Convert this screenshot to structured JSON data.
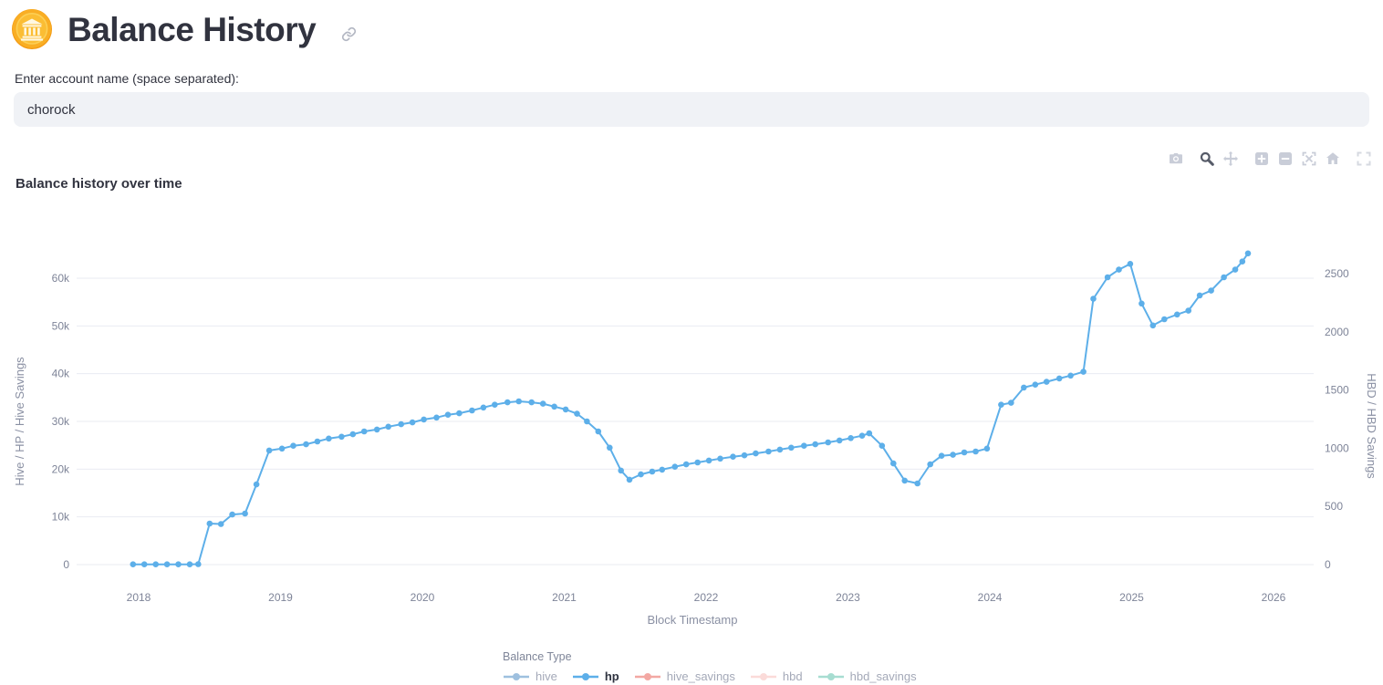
{
  "header": {
    "title": "Balance History",
    "icon": "bank-coin",
    "anchor_icon": "link"
  },
  "account_form": {
    "label": "Enter account name (space separated):",
    "value": "chorock"
  },
  "toolbar": {
    "buttons": [
      "download-plot-as-png",
      "zoom",
      "pan",
      "zoom-in",
      "zoom-out",
      "autoscale",
      "reset-axes",
      "fullscreen"
    ],
    "active": "zoom"
  },
  "chart_data": {
    "type": "line",
    "title": "Balance history over time",
    "x_axis": {
      "title": "Block Timestamp",
      "ticks": [
        2018,
        2019,
        2020,
        2021,
        2022,
        2023,
        2024,
        2025,
        2026
      ],
      "range": [
        2017.56,
        2026.28
      ]
    },
    "y_axis_left": {
      "title": "Hive / HP / Hive Savings",
      "ticks": [
        0,
        10000,
        20000,
        30000,
        40000,
        50000,
        60000
      ],
      "tick_labels": [
        "0",
        "10k",
        "20k",
        "30k",
        "40k",
        "50k",
        "60k"
      ],
      "range": [
        -3250,
        75500
      ]
    },
    "y_axis_right": {
      "title": "HBD / HBD Savings",
      "ticks": [
        0,
        500,
        1000,
        1500,
        2000,
        2500
      ],
      "tick_labels": [
        "0",
        "500",
        "1000",
        "1500",
        "2000",
        "2500"
      ],
      "range": [
        -133,
        3096
      ]
    },
    "legend": {
      "title": "Balance Type",
      "position": "bottom-center"
    },
    "grid": "horizontal-only",
    "series": [
      {
        "name": "hive",
        "color": "#3f83c0",
        "active": false,
        "axis": "left",
        "points": []
      },
      {
        "name": "hp",
        "color": "#5dafe9",
        "active": true,
        "axis": "left",
        "points": [
          [
            2017.96,
            50
          ],
          [
            2018.04,
            50
          ],
          [
            2018.12,
            50
          ],
          [
            2018.2,
            50
          ],
          [
            2018.28,
            50
          ],
          [
            2018.36,
            50
          ],
          [
            2018.42,
            100
          ],
          [
            2018.5,
            8600
          ],
          [
            2018.58,
            8500
          ],
          [
            2018.66,
            10500
          ],
          [
            2018.75,
            10700
          ],
          [
            2018.83,
            16800
          ],
          [
            2018.92,
            23900
          ],
          [
            2019.01,
            24300
          ],
          [
            2019.09,
            24900
          ],
          [
            2019.18,
            25200
          ],
          [
            2019.26,
            25800
          ],
          [
            2019.34,
            26400
          ],
          [
            2019.43,
            26800
          ],
          [
            2019.51,
            27300
          ],
          [
            2019.59,
            27900
          ],
          [
            2019.68,
            28300
          ],
          [
            2019.76,
            28900
          ],
          [
            2019.85,
            29400
          ],
          [
            2019.93,
            29800
          ],
          [
            2020.01,
            30400
          ],
          [
            2020.1,
            30800
          ],
          [
            2020.18,
            31400
          ],
          [
            2020.26,
            31700
          ],
          [
            2020.35,
            32300
          ],
          [
            2020.43,
            32900
          ],
          [
            2020.51,
            33500
          ],
          [
            2020.6,
            34000
          ],
          [
            2020.68,
            34200
          ],
          [
            2020.77,
            34000
          ],
          [
            2020.85,
            33700
          ],
          [
            2020.93,
            33100
          ],
          [
            2021.01,
            32500
          ],
          [
            2021.09,
            31600
          ],
          [
            2021.16,
            30000
          ],
          [
            2021.24,
            27900
          ],
          [
            2021.32,
            24500
          ],
          [
            2021.4,
            19700
          ],
          [
            2021.46,
            17800
          ],
          [
            2021.54,
            18900
          ],
          [
            2021.62,
            19500
          ],
          [
            2021.69,
            19900
          ],
          [
            2021.78,
            20500
          ],
          [
            2021.86,
            21000
          ],
          [
            2021.94,
            21400
          ],
          [
            2022.02,
            21800
          ],
          [
            2022.1,
            22200
          ],
          [
            2022.19,
            22600
          ],
          [
            2022.27,
            22900
          ],
          [
            2022.35,
            23300
          ],
          [
            2022.44,
            23700
          ],
          [
            2022.52,
            24100
          ],
          [
            2022.6,
            24500
          ],
          [
            2022.69,
            24900
          ],
          [
            2022.77,
            25200
          ],
          [
            2022.86,
            25600
          ],
          [
            2022.94,
            26000
          ],
          [
            2023.02,
            26500
          ],
          [
            2023.1,
            27000
          ],
          [
            2023.15,
            27500
          ],
          [
            2023.24,
            24900
          ],
          [
            2023.32,
            21200
          ],
          [
            2023.4,
            17600
          ],
          [
            2023.49,
            17000
          ],
          [
            2023.58,
            21000
          ],
          [
            2023.66,
            22800
          ],
          [
            2023.74,
            23000
          ],
          [
            2023.82,
            23500
          ],
          [
            2023.9,
            23700
          ],
          [
            2023.98,
            24300
          ],
          [
            2024.08,
            33500
          ],
          [
            2024.15,
            33900
          ],
          [
            2024.24,
            37100
          ],
          [
            2024.32,
            37700
          ],
          [
            2024.4,
            38300
          ],
          [
            2024.49,
            39000
          ],
          [
            2024.57,
            39600
          ],
          [
            2024.66,
            40400
          ],
          [
            2024.73,
            55700
          ],
          [
            2024.83,
            60200
          ],
          [
            2024.91,
            61800
          ],
          [
            2024.99,
            63000
          ],
          [
            2025.07,
            54700
          ],
          [
            2025.15,
            50100
          ],
          [
            2025.23,
            51400
          ],
          [
            2025.32,
            52400
          ],
          [
            2025.4,
            53200
          ],
          [
            2025.48,
            56400
          ],
          [
            2025.56,
            57400
          ],
          [
            2025.65,
            60200
          ],
          [
            2025.73,
            61800
          ],
          [
            2025.78,
            63500
          ],
          [
            2025.82,
            65200
          ]
        ]
      },
      {
        "name": "hive_savings",
        "color": "#e8534a",
        "active": false,
        "axis": "left",
        "points": []
      },
      {
        "name": "hbd",
        "color": "#f8b8b4",
        "active": false,
        "axis": "right",
        "points": []
      },
      {
        "name": "hbd_savings",
        "color": "#51bda5",
        "active": false,
        "axis": "right",
        "points": []
      }
    ]
  }
}
